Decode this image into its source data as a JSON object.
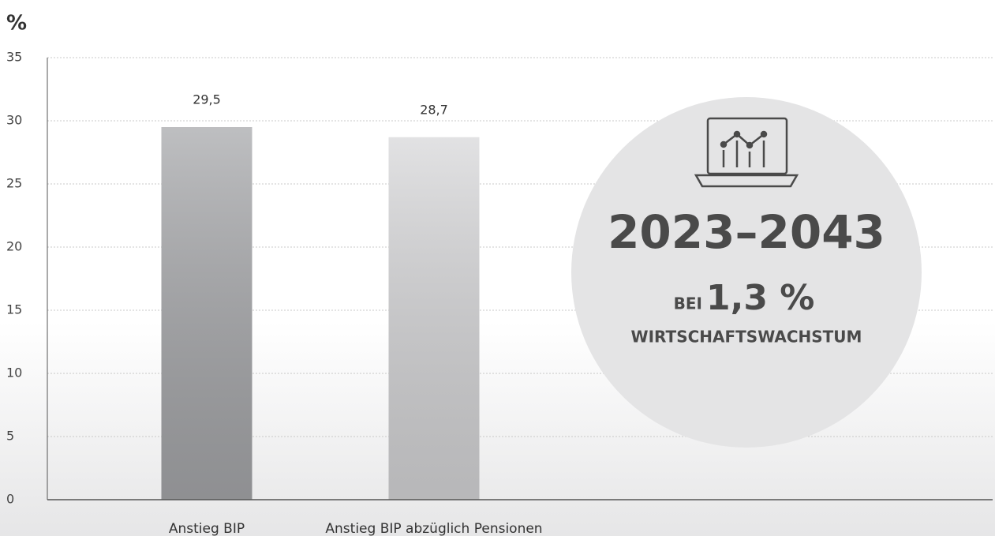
{
  "chart_data": {
    "type": "bar",
    "y_label": "%",
    "categories": [
      "Anstieg BIP",
      "Anstieg BIP abzüglich Pensionen"
    ],
    "values": [
      29.5,
      28.7
    ],
    "value_labels": [
      "29,5",
      "28,7"
    ],
    "colors": [
      "#a8a9ac",
      "#d8d8da"
    ],
    "ylim": [
      0,
      35
    ],
    "yticks": [
      0,
      5,
      10,
      15,
      20,
      25,
      30,
      35
    ],
    "grid": true,
    "annotation": {
      "period": "2023–2043",
      "prefix": "BEI",
      "rate": "1,3 %",
      "caption": "WIRTSCHAFTSWACHSTUM"
    }
  }
}
